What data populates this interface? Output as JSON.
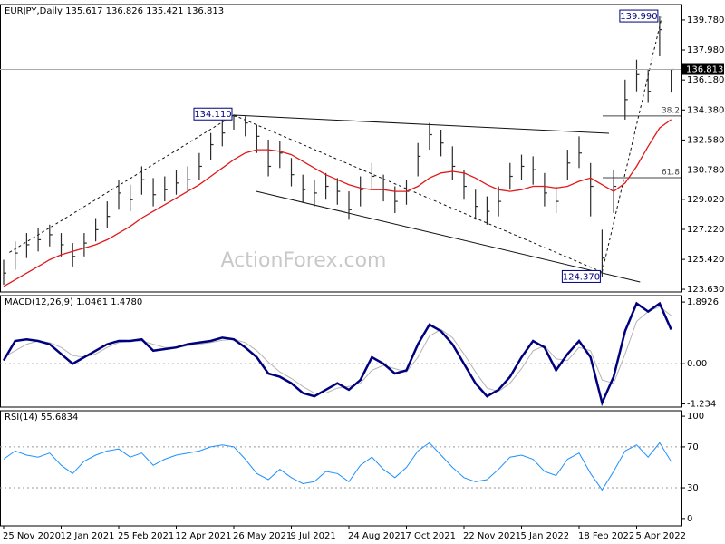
{
  "chart_data": [
    {
      "type": "hlc",
      "title": "EURJPY,Daily  135.617 136.826 135.421 136.813",
      "watermark": "ActionForex.com",
      "categories": [
        "25 Nov 2020",
        null,
        null,
        null,
        null,
        "12 Jan 2021",
        null,
        null,
        null,
        null,
        "25 Feb 2021",
        null,
        null,
        null,
        null,
        "12 Apr 2021",
        null,
        null,
        null,
        null,
        "26 May 2021",
        null,
        null,
        null,
        null,
        "9 Jul 2021",
        null,
        null,
        null,
        null,
        "24 Aug 2021",
        null,
        null,
        null,
        null,
        "7 Oct 2021",
        null,
        null,
        null,
        null,
        "22 Nov 2021",
        null,
        null,
        null,
        null,
        "5 Jan 2022",
        null,
        null,
        null,
        null,
        "18 Feb 2022",
        null,
        null,
        null,
        null,
        "5 Apr 2022",
        null,
        null,
        null
      ],
      "high": [
        125.4,
        126.5,
        127.0,
        127.3,
        127.5,
        127.0,
        126.4,
        127.0,
        127.9,
        128.9,
        130.2,
        129.9,
        131.0,
        130.3,
        130.4,
        130.8,
        131.0,
        131.8,
        133.0,
        133.8,
        134.11,
        134.0,
        133.5,
        132.6,
        132.5,
        131.5,
        130.5,
        130.2,
        130.6,
        130.3,
        129.5,
        130.4,
        131.2,
        130.5,
        129.8,
        130.2,
        132.4,
        133.6,
        133.2,
        132.2,
        130.8,
        129.6,
        129.2,
        129.8,
        131.2,
        131.7,
        131.6,
        130.6,
        129.8,
        132.0,
        132.8,
        131.2,
        127.2,
        130.8,
        136.2,
        137.4,
        136.8,
        139.99,
        136.826
      ],
      "low": [
        123.9,
        124.8,
        125.5,
        125.9,
        126.2,
        125.6,
        125.0,
        125.6,
        126.5,
        127.3,
        128.4,
        128.3,
        129.3,
        128.6,
        128.9,
        129.3,
        129.5,
        130.2,
        131.4,
        132.2,
        133.2,
        132.8,
        131.8,
        130.4,
        130.9,
        129.8,
        128.8,
        128.6,
        129.0,
        128.7,
        127.8,
        128.6,
        129.6,
        128.9,
        128.2,
        128.7,
        130.4,
        132.0,
        131.6,
        130.2,
        129.0,
        127.8,
        127.5,
        128.0,
        129.6,
        130.2,
        129.9,
        128.6,
        128.2,
        130.2,
        130.9,
        128.0,
        124.37,
        128.2,
        133.8,
        135.5,
        134.8,
        137.6,
        135.421
      ],
      "close": [
        124.6,
        125.8,
        126.3,
        126.6,
        126.9,
        126.3,
        125.6,
        126.4,
        127.2,
        128.0,
        129.4,
        129.0,
        130.2,
        129.3,
        129.6,
        130.0,
        130.2,
        131.0,
        132.3,
        133.0,
        134.0,
        133.6,
        132.8,
        131.0,
        131.8,
        130.5,
        129.6,
        129.4,
        129.8,
        129.5,
        128.4,
        129.6,
        130.4,
        129.6,
        128.9,
        129.5,
        131.6,
        132.9,
        132.4,
        131.0,
        129.8,
        128.6,
        128.3,
        128.9,
        130.4,
        131.0,
        130.8,
        129.4,
        128.9,
        131.2,
        131.8,
        129.8,
        125.5,
        129.8,
        135.0,
        136.5,
        135.5,
        139.2,
        136.813
      ],
      "color": "#2b2b2b",
      "ma": {
        "color": "#e0191b",
        "values": [
          123.8,
          124.2,
          124.6,
          125.0,
          125.4,
          125.7,
          125.9,
          126.1,
          126.3,
          126.6,
          127.0,
          127.4,
          127.9,
          128.3,
          128.7,
          129.1,
          129.5,
          129.9,
          130.4,
          130.9,
          131.4,
          131.8,
          132.0,
          132.0,
          131.9,
          131.7,
          131.3,
          130.9,
          130.5,
          130.2,
          129.9,
          129.7,
          129.6,
          129.6,
          129.5,
          129.5,
          129.8,
          130.3,
          130.6,
          130.7,
          130.6,
          130.3,
          129.9,
          129.6,
          129.5,
          129.6,
          129.8,
          129.8,
          129.7,
          129.8,
          130.1,
          130.3,
          129.9,
          129.5,
          130.0,
          131.0,
          132.2,
          133.3,
          133.8
        ]
      },
      "ylim": [
        123.47,
        140.7
      ],
      "yticks": [
        {
          "value": 139.78,
          "label": "139.780"
        },
        {
          "value": 137.98,
          "label": "137.980"
        },
        {
          "value": 136.18,
          "label": "136.180"
        },
        {
          "value": 134.38,
          "label": "134.380"
        },
        {
          "value": 132.58,
          "label": "132.580"
        },
        {
          "value": 130.78,
          "label": "130.780"
        },
        {
          "value": 129.02,
          "label": "129.020"
        },
        {
          "value": 127.22,
          "label": "127.220"
        },
        {
          "value": 125.42,
          "label": "125.420"
        },
        {
          "value": 123.63,
          "label": "123.630"
        }
      ],
      "annotations": [
        {
          "x": 57,
          "value": 139.99,
          "label": "139.990"
        },
        {
          "x": 20,
          "value": 134.11,
          "label": "134.110"
        },
        {
          "x": 52,
          "value": 124.37,
          "label": "124.370"
        }
      ],
      "fib_levels": [
        {
          "value": 134.02,
          "label": "38.2"
        },
        {
          "value": 130.32,
          "label": "61.8"
        }
      ],
      "trendlines": [
        {
          "x": [
            20.0,
            52.6
          ],
          "y": [
            134.07,
            132.98
          ],
          "dashed": false
        },
        {
          "x": [
            21.9,
            55.3
          ],
          "y": [
            129.51,
            124.07
          ],
          "dashed": false
        },
        {
          "x": [
            0.5,
            20.0
          ],
          "y": [
            125.84,
            134.07
          ],
          "dashed": true
        },
        {
          "x": [
            20.0,
            52.0
          ],
          "y": [
            134.07,
            124.66
          ],
          "dashed": true
        },
        {
          "x": [
            52.0,
            57.2
          ],
          "y": [
            124.66,
            139.99
          ],
          "dashed": true
        }
      ]
    },
    {
      "type": "line",
      "title": "MACD(12,26,9) 1.0461 1.4780",
      "series": [
        {
          "color": "#00007f",
          "width": 2.5,
          "values": [
            0.1,
            0.7,
            0.75,
            0.7,
            0.6,
            0.3,
            0.0,
            0.2,
            0.4,
            0.6,
            0.7,
            0.7,
            0.75,
            0.4,
            0.45,
            0.5,
            0.6,
            0.65,
            0.7,
            0.8,
            0.75,
            0.5,
            0.2,
            -0.3,
            -0.4,
            -0.6,
            -0.9,
            -1.0,
            -0.8,
            -0.6,
            -0.8,
            -0.5,
            0.2,
            0.0,
            -0.3,
            -0.2,
            0.6,
            1.2,
            1.0,
            0.6,
            0.0,
            -0.6,
            -1.0,
            -0.8,
            -0.4,
            0.2,
            0.7,
            0.5,
            -0.2,
            0.3,
            0.7,
            0.2,
            -1.2,
            -0.4,
            1.0,
            1.85,
            1.6,
            1.85,
            1.0461
          ]
        },
        {
          "color": "#b4b4b4",
          "width": 1,
          "values": [
            0.2,
            0.4,
            0.6,
            0.7,
            0.65,
            0.5,
            0.25,
            0.2,
            0.3,
            0.5,
            0.65,
            0.7,
            0.7,
            0.6,
            0.5,
            0.5,
            0.55,
            0.6,
            0.65,
            0.72,
            0.75,
            0.65,
            0.4,
            0.05,
            -0.25,
            -0.45,
            -0.7,
            -0.9,
            -0.9,
            -0.75,
            -0.7,
            -0.6,
            -0.2,
            -0.05,
            -0.15,
            -0.25,
            0.2,
            0.85,
            1.05,
            0.8,
            0.3,
            -0.25,
            -0.75,
            -0.85,
            -0.6,
            -0.15,
            0.4,
            0.55,
            0.15,
            0.1,
            0.5,
            0.4,
            -0.5,
            -0.6,
            0.3,
            1.3,
            1.6,
            1.75,
            1.478
          ]
        }
      ],
      "ylim": [
        -1.33,
        2.09
      ],
      "yticks": [
        1.8926,
        {
          "value": 0,
          "label": "0.00"
        },
        -1.234
      ],
      "levels": [
        0
      ]
    },
    {
      "type": "line",
      "title": "RSI(14) 55.6834",
      "series": [
        {
          "color": "#1e90ff",
          "width": 1,
          "values": [
            58,
            66,
            62,
            60,
            64,
            52,
            44,
            56,
            62,
            66,
            68,
            60,
            64,
            52,
            58,
            62,
            64,
            66,
            70,
            72,
            70,
            58,
            44,
            38,
            48,
            40,
            34,
            36,
            46,
            44,
            36,
            52,
            60,
            48,
            40,
            50,
            66,
            74,
            62,
            50,
            40,
            36,
            38,
            48,
            60,
            62,
            58,
            46,
            42,
            58,
            64,
            44,
            28,
            46,
            66,
            72,
            60,
            74,
            55.6834
          ]
        }
      ],
      "ylim": [
        -7.2,
        105.4
      ],
      "yticks": [
        100,
        70,
        30,
        0
      ],
      "levels": [
        70,
        30
      ]
    }
  ]
}
